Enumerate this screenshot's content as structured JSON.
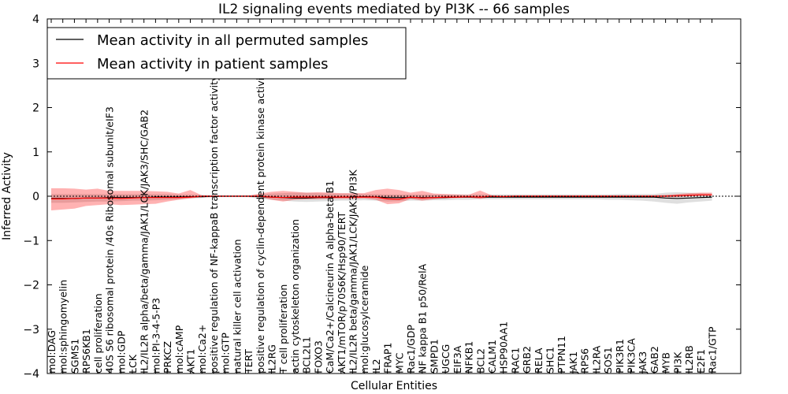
{
  "chart_data": {
    "type": "line",
    "title": "IL2 signaling events mediated by PI3K -- 66 samples",
    "xlabel": "Cellular Entities",
    "ylabel": "Inferred Activity",
    "ylim": [
      -4,
      4
    ],
    "yticks": [
      -4,
      -3,
      -2,
      -1,
      0,
      1,
      2,
      3,
      4
    ],
    "ytick_labels": [
      "−4",
      "−3",
      "−2",
      "−1",
      "0",
      "1",
      "2",
      "3",
      "4"
    ],
    "legend_position": "top-left",
    "categories": [
      "mol:DAG",
      "mol:sphingomyelin",
      "SGMS1",
      "RPS6KB1",
      "cell proliferation",
      "40S S6 ribosomal protein /40s Ribosomal subunit/eIF3",
      "mol:GDP",
      "LCK",
      "IL2/IL2R alpha/beta/gamma/JAK1/LCK/JAK3/SHC/GAB2",
      "mol:PI-3-4-5-P3",
      "PRKCZ",
      "mol:cAMP",
      "AKT1",
      "mol:Ca2+",
      "positive regulation of NF-kappaB transcription factor activity",
      "mol:GTP",
      "natural killer cell activation",
      "TERT",
      "positive regulation of cyclin-dependent protein kinase activity",
      "IL2RG",
      "T cell proliferation",
      "actin cytoskeleton organization",
      "BCL2L1",
      "FOXO3",
      "CaM/Ca2+/Calcineurin A alpha-beta B1",
      "AKT1/mTOR/p70S6K/Hsp90/TERT",
      "IL2/IL2R beta/gamma/JAK1/LCK/JAK3/PI3K",
      "mol:glucosylceramide",
      "IL2",
      "FRAP1",
      "MYC",
      "Rac1/GDP",
      "NF kappa B1 p50/RelA",
      "SMPD1",
      "UGCG",
      "EIF3A",
      "NFKB1",
      "BCL2",
      "CALM1",
      "HSP90AA1",
      "RAC1",
      "GRB2",
      "RELA",
      "SHC1",
      "PTPN11",
      "JAK1",
      "RPS6",
      "IL2RA",
      "SOS1",
      "PIK3R1",
      "PIK3CA",
      "JAK3",
      "GAB2",
      "MYB",
      "PI3K",
      "IL2RB",
      "E2F1",
      "Rac1/GTP"
    ],
    "series": [
      {
        "name": "Mean activity in all permuted samples",
        "color": "#000000",
        "values": [
          -0.05,
          -0.05,
          -0.05,
          -0.04,
          -0.04,
          -0.03,
          -0.03,
          -0.03,
          -0.03,
          -0.02,
          -0.02,
          -0.02,
          -0.01,
          -0.01,
          0,
          0,
          0,
          0,
          -0.01,
          -0.02,
          -0.03,
          -0.04,
          -0.04,
          -0.03,
          -0.03,
          -0.02,
          -0.02,
          -0.01,
          -0.02,
          -0.03,
          -0.03,
          -0.03,
          -0.03,
          -0.03,
          -0.03,
          -0.02,
          -0.02,
          -0.02,
          -0.02,
          -0.02,
          -0.02,
          -0.02,
          -0.02,
          -0.02,
          -0.02,
          -0.02,
          -0.02,
          -0.02,
          -0.02,
          -0.02,
          -0.02,
          -0.02,
          -0.02,
          -0.04,
          -0.05,
          -0.04,
          -0.03,
          -0.02
        ],
        "band_low": [
          -0.15,
          -0.15,
          -0.14,
          -0.13,
          -0.12,
          -0.12,
          -0.11,
          -0.1,
          -0.1,
          -0.09,
          -0.08,
          -0.07,
          -0.05,
          -0.04,
          -0.02,
          -0.02,
          -0.02,
          -0.02,
          -0.06,
          -0.08,
          -0.1,
          -0.12,
          -0.13,
          -0.12,
          -0.11,
          -0.1,
          -0.1,
          -0.09,
          -0.1,
          -0.12,
          -0.11,
          -0.1,
          -0.1,
          -0.09,
          -0.09,
          -0.08,
          -0.08,
          -0.07,
          -0.07,
          -0.07,
          -0.07,
          -0.07,
          -0.07,
          -0.07,
          -0.07,
          -0.07,
          -0.07,
          -0.07,
          -0.08,
          -0.08,
          -0.09,
          -0.1,
          -0.12,
          -0.15,
          -0.17,
          -0.14,
          -0.12,
          -0.1
        ],
        "band_high": [
          0.05,
          0.05,
          0.05,
          0.05,
          0.05,
          0.05,
          0.05,
          0.05,
          0.05,
          0.05,
          0.05,
          0.04,
          0.04,
          0.03,
          0.02,
          0.02,
          0.02,
          0.02,
          0.04,
          0.06,
          0.07,
          0.08,
          0.08,
          0.07,
          0.06,
          0.06,
          0.06,
          0.05,
          0.05,
          0.04,
          0.04,
          0.04,
          0.04,
          0.04,
          0.04,
          0.04,
          0.04,
          0.04,
          0.04,
          0.04,
          0.04,
          0.04,
          0.04,
          0.04,
          0.04,
          0.04,
          0.04,
          0.04,
          0.04,
          0.05,
          0.05,
          0.05,
          0.05,
          0.08,
          0.09,
          0.08,
          0.07,
          0.06
        ]
      },
      {
        "name": "Mean activity in patient samples",
        "color": "#ff0000",
        "values": [
          -0.06,
          -0.06,
          -0.05,
          -0.04,
          -0.04,
          -0.04,
          -0.05,
          -0.04,
          -0.03,
          -0.03,
          -0.03,
          -0.03,
          -0.02,
          0,
          0,
          0,
          0,
          0,
          0,
          -0.02,
          -0.03,
          -0.02,
          -0.02,
          -0.02,
          -0.02,
          -0.02,
          -0.02,
          -0.02,
          -0.02,
          -0.06,
          -0.07,
          -0.02,
          -0.04,
          -0.03,
          -0.02,
          -0.02,
          -0.01,
          -0.02,
          0,
          -0.01,
          0,
          0,
          0,
          0,
          0,
          0,
          0,
          0,
          0,
          0,
          0,
          0,
          0,
          0,
          0.01,
          0.02,
          0.03,
          0.03
        ],
        "band_low": [
          -0.32,
          -0.3,
          -0.28,
          -0.22,
          -0.2,
          -0.18,
          -0.2,
          -0.19,
          -0.18,
          -0.17,
          -0.12,
          -0.08,
          -0.05,
          -0.02,
          -0.02,
          -0.01,
          -0.01,
          -0.01,
          -0.02,
          -0.08,
          -0.12,
          -0.08,
          -0.07,
          -0.07,
          -0.06,
          -0.06,
          -0.06,
          -0.05,
          -0.08,
          -0.18,
          -0.16,
          -0.06,
          -0.1,
          -0.07,
          -0.05,
          -0.04,
          -0.03,
          -0.06,
          -0.02,
          -0.03,
          -0.02,
          -0.02,
          -0.02,
          -0.02,
          -0.02,
          -0.02,
          -0.02,
          -0.02,
          -0.02,
          -0.02,
          -0.02,
          -0.02,
          -0.02,
          -0.02,
          -0.02,
          0,
          0.01,
          0.01
        ],
        "band_high": [
          0.18,
          0.18,
          0.17,
          0.15,
          0.17,
          0.12,
          0.12,
          0.12,
          0.12,
          0.11,
          0.1,
          0.06,
          0.14,
          0.02,
          0.02,
          0.01,
          0.01,
          0.01,
          0.06,
          0.1,
          0.12,
          0.1,
          0.08,
          0.09,
          0.08,
          0.07,
          0.07,
          0.07,
          0.14,
          0.17,
          0.14,
          0.08,
          0.12,
          0.06,
          0.05,
          0.04,
          0.03,
          0.13,
          0.02,
          0.02,
          0.02,
          0.02,
          0.02,
          0.02,
          0.02,
          0.02,
          0.02,
          0.02,
          0.02,
          0.02,
          0.02,
          0.02,
          0.02,
          0.03,
          0.05,
          0.07,
          0.08,
          0.08
        ]
      }
    ]
  }
}
